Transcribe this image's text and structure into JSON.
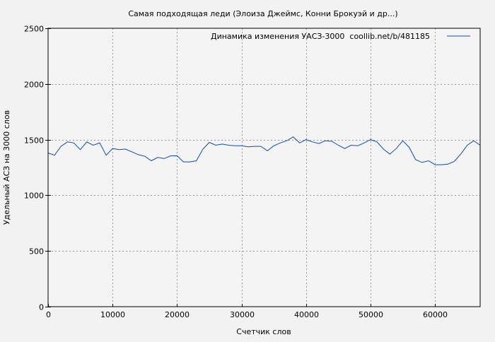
{
  "chart_data": {
    "type": "line",
    "title": "Самая подходящая леди (Элоиза Джеймс, Конни Брокуэй и др...)",
    "xlabel": "Счетчик слов",
    "ylabel": "Удельный АСЗ на 3000 слов",
    "xlim": [
      0,
      67000
    ],
    "ylim": [
      0,
      2500
    ],
    "xticks": [
      0,
      10000,
      20000,
      30000,
      40000,
      50000,
      60000
    ],
    "yticks": [
      0,
      500,
      1000,
      1500,
      2000,
      2500
    ],
    "grid": true,
    "legend_position": "top-right",
    "series": [
      {
        "name": "Динамика изменения УАСЗ-3000  coollib.net/b/481185",
        "color": "#0b4bb3",
        "x": [
          0,
          1000,
          2000,
          3000,
          4000,
          5000,
          6000,
          7000,
          8000,
          9000,
          10000,
          11000,
          12000,
          13000,
          14000,
          15000,
          16000,
          17000,
          18000,
          19000,
          20000,
          21000,
          22000,
          23000,
          24000,
          25000,
          26000,
          27000,
          28000,
          29000,
          30000,
          31000,
          32000,
          33000,
          34000,
          35000,
          36000,
          37000,
          38000,
          39000,
          40000,
          41000,
          42000,
          43000,
          44000,
          45000,
          46000,
          47000,
          48000,
          49000,
          50000,
          51000,
          52000,
          53000,
          54000,
          55000,
          56000,
          57000,
          58000,
          59000,
          60000,
          61000,
          62000,
          63000,
          64000,
          65000,
          66000,
          67000
        ],
        "values": [
          1380,
          1360,
          1440,
          1480,
          1470,
          1410,
          1480,
          1450,
          1470,
          1360,
          1420,
          1410,
          1415,
          1390,
          1365,
          1350,
          1310,
          1340,
          1330,
          1355,
          1355,
          1300,
          1300,
          1310,
          1415,
          1475,
          1450,
          1460,
          1450,
          1445,
          1445,
          1435,
          1440,
          1440,
          1400,
          1445,
          1470,
          1490,
          1525,
          1470,
          1500,
          1480,
          1465,
          1490,
          1485,
          1450,
          1420,
          1450,
          1445,
          1470,
          1500,
          1480,
          1415,
          1370,
          1420,
          1490,
          1430,
          1320,
          1295,
          1310,
          1275,
          1275,
          1280,
          1305,
          1370,
          1450,
          1490,
          1450
        ]
      }
    ]
  }
}
